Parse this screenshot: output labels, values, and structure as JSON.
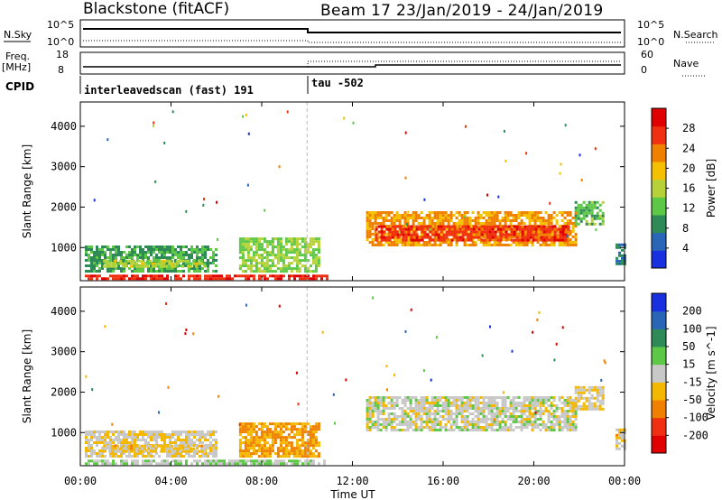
{
  "header": {
    "station": "Blackstone (fitACF)",
    "beam_info": "Beam 17 23/Jan/2019 - 24/Jan/2019"
  },
  "status_panels": {
    "nsky_label": "N.Sky",
    "nsky_ticks": [
      "10^5",
      "10^0"
    ],
    "nsearch_label": "N.Search",
    "nsearch_ticks": [
      "10^5",
      "10^0"
    ],
    "freq_label_1": "Freq.",
    "freq_label_2": "[MHz]",
    "freq_ticks": [
      "18",
      "8"
    ],
    "nave_label": "Nave",
    "nave_ticks": [
      "60",
      "0"
    ],
    "cpid_label": "CPID",
    "cpid_segments": [
      {
        "start_hour": 0,
        "text": "interleavedscan (fast) 191"
      },
      {
        "start_hour": 10,
        "text": "tau -502"
      }
    ]
  },
  "chart_data": [
    {
      "type": "heatmap",
      "title": "Power",
      "xlabel": "Time UT",
      "ylabel": "Slant Range [km]",
      "x_ticks": [
        "00:00",
        "04:00",
        "08:00",
        "12:00",
        "16:00",
        "20:00",
        "00:00"
      ],
      "x_range_hours": [
        0,
        24
      ],
      "y_ticks": [
        1000,
        2000,
        3000,
        4000
      ],
      "ylim": [
        180,
        4600
      ],
      "colorbar": {
        "label": "Power [dB]",
        "ticks": [
          "28",
          "24",
          "20",
          "16",
          "12",
          "8",
          "4"
        ],
        "range": [
          0,
          32
        ],
        "colors": [
          "#1830e0",
          "#2a66b8",
          "#2e8b57",
          "#5cc845",
          "#b6d238",
          "#f5c000",
          "#f08000",
          "#f03010",
          "#e00000"
        ]
      },
      "regions": [
        {
          "t": [
            0.2,
            10.9
          ],
          "r": [
            200,
            330
          ],
          "level": 28
        },
        {
          "t": [
            0.2,
            6.0
          ],
          "r": [
            420,
            1050
          ],
          "level": 10
        },
        {
          "t": [
            1.0,
            5.5
          ],
          "r": [
            550,
            700
          ],
          "level": 16
        },
        {
          "t": [
            7.0,
            10.5
          ],
          "r": [
            430,
            1250
          ],
          "level": 14
        },
        {
          "t": [
            12.6,
            21.8
          ],
          "r": [
            1050,
            1900
          ],
          "level": 22
        },
        {
          "t": [
            13.0,
            21.5
          ],
          "r": [
            1150,
            1550
          ],
          "level": 27
        },
        {
          "t": [
            21.8,
            23.0
          ],
          "r": [
            1600,
            2150
          ],
          "level": 12
        },
        {
          "t": [
            23.6,
            24.0
          ],
          "r": [
            600,
            1100
          ],
          "level": 8
        }
      ]
    },
    {
      "type": "heatmap",
      "title": "Velocity",
      "xlabel": "Time UT",
      "ylabel": "Slant Range [km]",
      "x_ticks": [
        "00:00",
        "04:00",
        "08:00",
        "12:00",
        "16:00",
        "20:00",
        "00:00"
      ],
      "x_range_hours": [
        0,
        24
      ],
      "y_ticks": [
        1000,
        2000,
        3000,
        4000
      ],
      "ylim": [
        180,
        4600
      ],
      "colorbar": {
        "label": "Velocity [m s^-1]",
        "ticks": [
          "200",
          "100",
          "50",
          "15",
          "-15",
          "-50",
          "-100",
          "-200"
        ],
        "range": [
          -250,
          250
        ],
        "colors": [
          "#e00000",
          "#f03010",
          "#f08000",
          "#f5b800",
          "#c8c8c8",
          "#5cc845",
          "#2e8b57",
          "#2a66b8",
          "#1830e0"
        ]
      },
      "regions": [
        {
          "t": [
            0.2,
            10.9
          ],
          "r": [
            200,
            330
          ],
          "level": 30
        },
        {
          "t": [
            0.2,
            6.0
          ],
          "r": [
            420,
            1050
          ],
          "level": -20
        },
        {
          "t": [
            1.0,
            5.5
          ],
          "r": [
            550,
            700
          ],
          "level": -40
        },
        {
          "t": [
            7.0,
            10.5
          ],
          "r": [
            430,
            1250
          ],
          "level": -90
        },
        {
          "t": [
            12.6,
            21.8
          ],
          "r": [
            1050,
            1900
          ],
          "level": 0
        },
        {
          "t": [
            21.8,
            23.0
          ],
          "r": [
            1600,
            2150
          ],
          "level": -20
        },
        {
          "t": [
            23.6,
            24.0
          ],
          "r": [
            600,
            1100
          ],
          "level": -40
        }
      ]
    }
  ]
}
